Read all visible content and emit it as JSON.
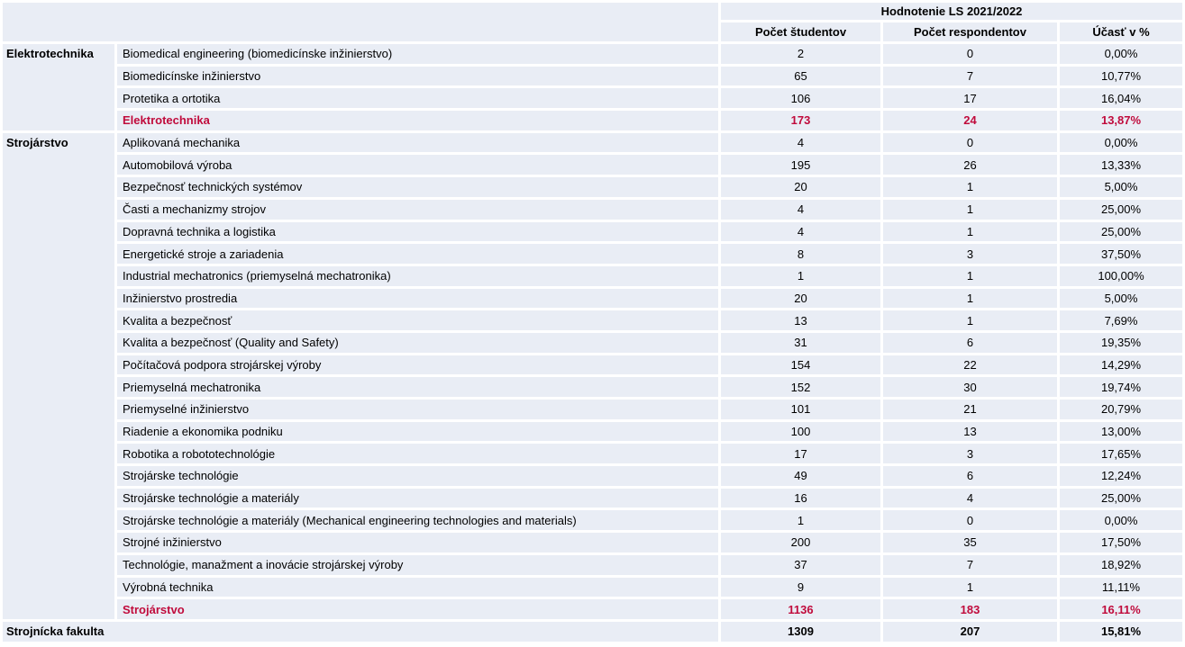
{
  "chart_data": {
    "type": "table",
    "title": "Hodnotenie LS 2021/2022",
    "columns": [
      "Počet študentov",
      "Počet respondentov",
      "Účasť v %"
    ],
    "groups": [
      {
        "name": "Elektrotechnika",
        "rows": [
          {
            "label": "Biomedical engineering (biomedicínske inžinierstvo)",
            "students": "2",
            "respondents": "0",
            "participation": "0,00%",
            "summary": false
          },
          {
            "label": "Biomedicínske inžinierstvo",
            "students": "65",
            "respondents": "7",
            "participation": "10,77%",
            "summary": false
          },
          {
            "label": "Protetika a ortotika",
            "students": "106",
            "respondents": "17",
            "participation": "16,04%",
            "summary": false
          },
          {
            "label": "Elektrotechnika",
            "students": "173",
            "respondents": "24",
            "participation": "13,87%",
            "summary": true
          }
        ]
      },
      {
        "name": "Strojárstvo",
        "rows": [
          {
            "label": "Aplikovaná mechanika",
            "students": "4",
            "respondents": "0",
            "participation": "0,00%",
            "summary": false
          },
          {
            "label": "Automobilová výroba",
            "students": "195",
            "respondents": "26",
            "participation": "13,33%",
            "summary": false
          },
          {
            "label": "Bezpečnosť technických systémov",
            "students": "20",
            "respondents": "1",
            "participation": "5,00%",
            "summary": false
          },
          {
            "label": "Časti a mechanizmy strojov",
            "students": "4",
            "respondents": "1",
            "participation": "25,00%",
            "summary": false
          },
          {
            "label": "Dopravná technika a logistika",
            "students": "4",
            "respondents": "1",
            "participation": "25,00%",
            "summary": false
          },
          {
            "label": "Energetické stroje a zariadenia",
            "students": "8",
            "respondents": "3",
            "participation": "37,50%",
            "summary": false
          },
          {
            "label": "Industrial mechatronics (priemyselná mechatronika)",
            "students": "1",
            "respondents": "1",
            "participation": "100,00%",
            "summary": false
          },
          {
            "label": "Inžinierstvo prostredia",
            "students": "20",
            "respondents": "1",
            "participation": "5,00%",
            "summary": false
          },
          {
            "label": "Kvalita a bezpečnosť",
            "students": "13",
            "respondents": "1",
            "participation": "7,69%",
            "summary": false
          },
          {
            "label": "Kvalita a bezpečnosť (Quality and Safety)",
            "students": "31",
            "respondents": "6",
            "participation": "19,35%",
            "summary": false
          },
          {
            "label": "Počítačová podpora strojárskej výroby",
            "students": "154",
            "respondents": "22",
            "participation": "14,29%",
            "summary": false
          },
          {
            "label": "Priemyselná mechatronika",
            "students": "152",
            "respondents": "30",
            "participation": "19,74%",
            "summary": false
          },
          {
            "label": "Priemyselné inžinierstvo",
            "students": "101",
            "respondents": "21",
            "participation": "20,79%",
            "summary": false
          },
          {
            "label": "Riadenie a ekonomika podniku",
            "students": "100",
            "respondents": "13",
            "participation": "13,00%",
            "summary": false
          },
          {
            "label": "Robotika a robototechnológie",
            "students": "17",
            "respondents": "3",
            "participation": "17,65%",
            "summary": false
          },
          {
            "label": "Strojárske technológie",
            "students": "49",
            "respondents": "6",
            "participation": "12,24%",
            "summary": false
          },
          {
            "label": "Strojárske technológie a materiály",
            "students": "16",
            "respondents": "4",
            "participation": "25,00%",
            "summary": false
          },
          {
            "label": "Strojárske technológie a materiály (Mechanical engineering technologies and materials)",
            "students": "1",
            "respondents": "0",
            "participation": "0,00%",
            "summary": false
          },
          {
            "label": "Strojné inžinierstvo",
            "students": "200",
            "respondents": "35",
            "participation": "17,50%",
            "summary": false
          },
          {
            "label": "Technológie, manažment a inovácie strojárskej výroby",
            "students": "37",
            "respondents": "7",
            "participation": "18,92%",
            "summary": false
          },
          {
            "label": "Výrobná technika",
            "students": "9",
            "respondents": "1",
            "participation": "11,11%",
            "summary": false
          },
          {
            "label": "Strojárstvo",
            "students": "1136",
            "respondents": "183",
            "participation": "16,11%",
            "summary": true
          }
        ]
      }
    ],
    "total": {
      "label": "Strojnícka fakulta",
      "students": "1309",
      "respondents": "207",
      "participation": "15,81%"
    }
  },
  "colors": {
    "cell_background": "#E9EDF5",
    "summary_red": "#C00B3C",
    "text": "#000000",
    "page_background": "#FFFFFF"
  }
}
